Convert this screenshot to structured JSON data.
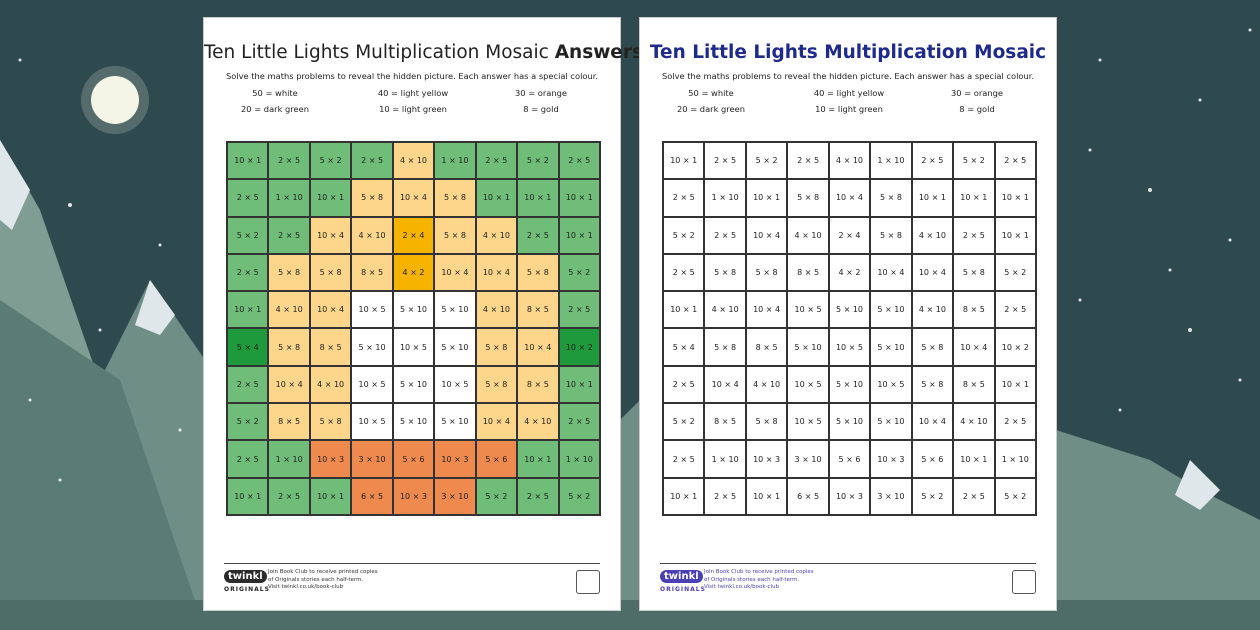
{
  "title": "Ten Little Lights Multiplication Mosaic",
  "title_answers": "Answers",
  "subtitle": "Solve the maths problems to reveal the hidden picture. Each answer has a special colour.",
  "legend": [
    {
      "label": "50 = white",
      "color": "#ffffff"
    },
    {
      "label": "40 = light yellow",
      "color": "#fdd68c"
    },
    {
      "label": "30 = orange",
      "color": "#ef8a4f"
    },
    {
      "label": "20 = dark green",
      "color": "#1e9a3c"
    },
    {
      "label": "10 = light green",
      "color": "#6fbd78"
    },
    {
      "label": "8 = gold",
      "color": "#f6b300"
    }
  ],
  "grid": [
    [
      "10 × 1",
      "2 × 5",
      "5 × 2",
      "2 × 5",
      "4 × 10",
      "1 × 10",
      "2 × 5",
      "5 × 2",
      "2 × 5"
    ],
    [
      "2 × 5",
      "1 × 10",
      "10 × 1",
      "5 × 8",
      "10 × 4",
      "5 × 8",
      "10 × 1",
      "10 × 1",
      "10 × 1"
    ],
    [
      "5 × 2",
      "2 × 5",
      "10 × 4",
      "4 × 10",
      "2 × 4",
      "5 × 8",
      "4 × 10",
      "2 × 5",
      "10 × 1"
    ],
    [
      "2 × 5",
      "5 × 8",
      "5 × 8",
      "8 × 5",
      "4 × 2",
      "10 × 4",
      "10 × 4",
      "5 × 8",
      "5 × 2"
    ],
    [
      "10 × 1",
      "4 × 10",
      "10 × 4",
      "10 × 5",
      "5 × 10",
      "5 × 10",
      "4 × 10",
      "8 × 5",
      "2 × 5"
    ],
    [
      "5 × 4",
      "5 × 8",
      "8 × 5",
      "5 × 10",
      "10 × 5",
      "5 × 10",
      "5 × 8",
      "10 × 4",
      "10 × 2"
    ],
    [
      "2 × 5",
      "10 × 4",
      "4 × 10",
      "10 × 5",
      "5 × 10",
      "10 × 5",
      "5 × 8",
      "8 × 5",
      "10 × 1"
    ],
    [
      "5 × 2",
      "8 × 5",
      "5 × 8",
      "10 × 5",
      "5 × 10",
      "5 × 10",
      "10 × 4",
      "4 × 10",
      "2 × 5"
    ],
    [
      "2 × 5",
      "1 × 10",
      "10 × 3",
      "3 × 10",
      "5 × 6",
      "10 × 3",
      "5 × 6",
      "10 × 1",
      "1 × 10"
    ],
    [
      "10 × 1",
      "2 × 5",
      "10 × 1",
      "6 × 5",
      "10 × 3",
      "3 × 10",
      "5 × 2",
      "2 × 5",
      "5 × 2"
    ]
  ],
  "footer": {
    "logo": "twinkl",
    "logo_sub": "ORIGINALS",
    "lines": [
      "Join Book Club to receive printed copies",
      "of Originals stories each half-term.",
      "Visit twinkl.co.uk/book-club"
    ]
  }
}
